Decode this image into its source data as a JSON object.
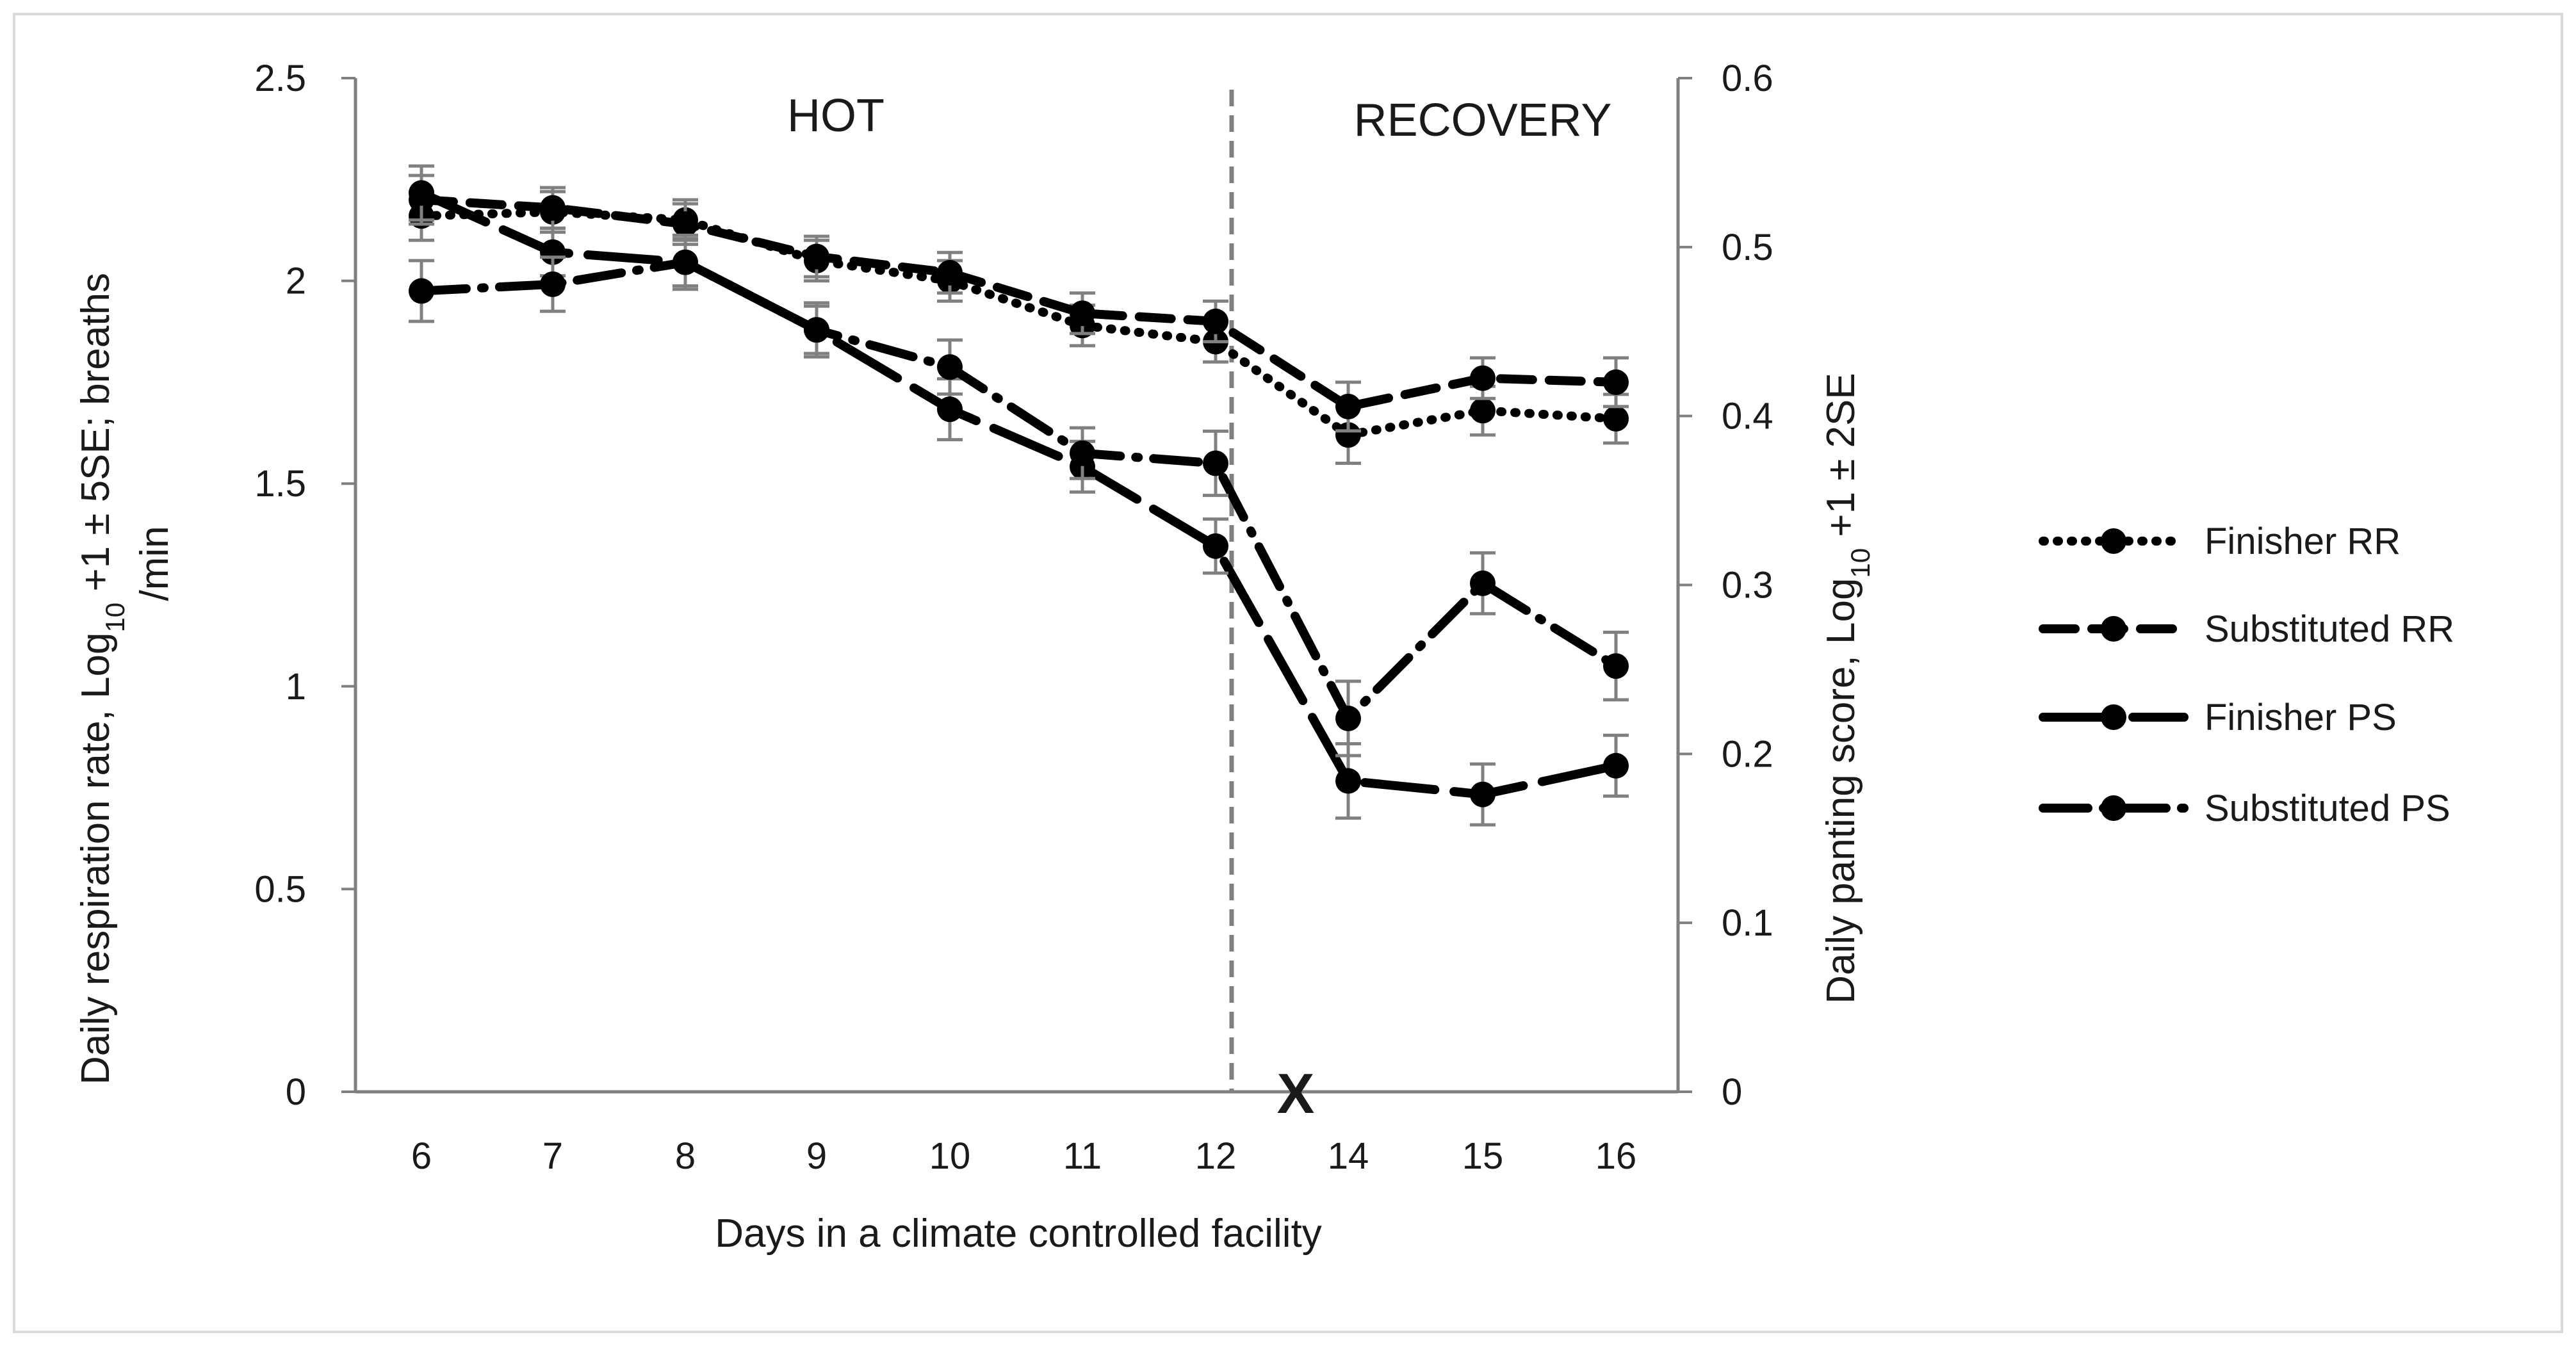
{
  "chart_data": {
    "type": "line",
    "categories": [
      "6",
      "7",
      "8",
      "9",
      "10",
      "11",
      "12",
      "14",
      "15",
      "16"
    ],
    "break_marker": "X",
    "regions": [
      {
        "label": "HOT",
        "from": "6",
        "to": "12"
      },
      {
        "label": "RECOVERY",
        "from": "12",
        "to": "16"
      }
    ],
    "xlabel": "Days in a climate controlled facility",
    "ylabel_left": {
      "main": "Daily respiration rate, Log",
      "sub": "10",
      "rest": " +1 ± 5SE; breaths",
      "line2": "/min"
    },
    "ylabel_right": {
      "main": "Daily panting score, Log",
      "sub": "10",
      "rest": " +1 ± 2SE"
    },
    "ylim_left": [
      0,
      2.5
    ],
    "yticks_left": [
      "0",
      "0.5",
      "1",
      "1.5",
      "2",
      "2.5"
    ],
    "ylim_right": [
      0,
      0.6
    ],
    "yticks_right": [
      "0",
      "0.1",
      "0.2",
      "0.3",
      "0.4",
      "0.5",
      "0.6"
    ],
    "series": [
      {
        "name": "Finisher RR",
        "axis": "left",
        "dash": "dot",
        "values": [
          2.16,
          2.17,
          2.15,
          2.05,
          2.0,
          1.89,
          1.85,
          1.62,
          1.68,
          1.66
        ],
        "err": [
          0.06,
          0.05,
          0.05,
          0.05,
          0.05,
          0.05,
          0.05,
          0.07,
          0.06,
          0.06
        ]
      },
      {
        "name": "Substituted RR",
        "axis": "left",
        "dash": "dash",
        "values": [
          2.2,
          2.18,
          2.14,
          2.06,
          2.02,
          1.92,
          1.9,
          1.69,
          1.76,
          1.75
        ],
        "err": [
          0.06,
          0.05,
          0.05,
          0.05,
          0.05,
          0.05,
          0.05,
          0.06,
          0.05,
          0.06
        ]
      },
      {
        "name": "Finisher PS",
        "axis": "right",
        "dash": "longdash",
        "values": [
          0.532,
          0.497,
          0.491,
          0.451,
          0.404,
          0.37,
          0.323,
          0.184,
          0.176,
          0.193
        ],
        "err": [
          0.016,
          0.014,
          0.014,
          0.014,
          0.018,
          0.015,
          0.016,
          0.022,
          0.018,
          0.018
        ]
      },
      {
        "name": "Substituted PS",
        "axis": "right",
        "dash": "dashdot",
        "values": [
          0.474,
          0.478,
          0.491,
          0.451,
          0.429,
          0.378,
          0.372,
          0.221,
          0.301,
          0.252
        ],
        "err": [
          0.018,
          0.016,
          0.016,
          0.016,
          0.016,
          0.015,
          0.019,
          0.022,
          0.018,
          0.02
        ]
      }
    ],
    "legend": {
      "position": "right"
    },
    "grid": false
  }
}
